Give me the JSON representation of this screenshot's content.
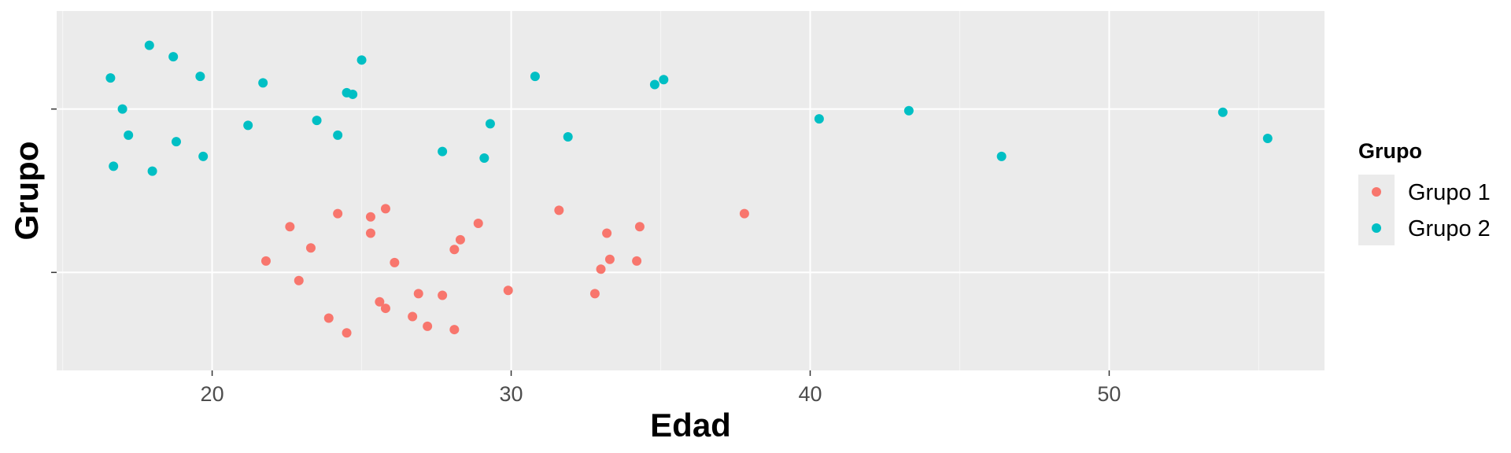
{
  "chart_data": {
    "type": "scatter",
    "title": "",
    "xlabel": "Edad",
    "ylabel": "Grupo",
    "xlim": [
      14.8,
      57.2
    ],
    "x_ticks": [
      20,
      30,
      40,
      50
    ],
    "x_tick_labels": [
      "20",
      "30",
      "40",
      "50"
    ],
    "y_categories": [
      "Grupo 1",
      "Grupo 2"
    ],
    "grid": true,
    "legend": {
      "title": "Grupo",
      "placement": "right"
    },
    "series": [
      {
        "name": "Grupo 1",
        "color": "#F8766D",
        "points": [
          {
            "x": 21.8,
            "y": "Grupo 1",
            "jitter": 0.07
          },
          {
            "x": 22.6,
            "y": "Grupo 1",
            "jitter": 0.28
          },
          {
            "x": 22.9,
            "y": "Grupo 1",
            "jitter": -0.05
          },
          {
            "x": 23.3,
            "y": "Grupo 1",
            "jitter": 0.15
          },
          {
            "x": 23.9,
            "y": "Grupo 1",
            "jitter": -0.28
          },
          {
            "x": 24.2,
            "y": "Grupo 1",
            "jitter": 0.36
          },
          {
            "x": 24.5,
            "y": "Grupo 1",
            "jitter": -0.37
          },
          {
            "x": 25.3,
            "y": "Grupo 1",
            "jitter": 0.34
          },
          {
            "x": 25.3,
            "y": "Grupo 1",
            "jitter": 0.24
          },
          {
            "x": 25.6,
            "y": "Grupo 1",
            "jitter": -0.18
          },
          {
            "x": 25.8,
            "y": "Grupo 1",
            "jitter": 0.39
          },
          {
            "x": 25.8,
            "y": "Grupo 1",
            "jitter": -0.22
          },
          {
            "x": 26.1,
            "y": "Grupo 1",
            "jitter": 0.06
          },
          {
            "x": 26.7,
            "y": "Grupo 1",
            "jitter": -0.27
          },
          {
            "x": 26.9,
            "y": "Grupo 1",
            "jitter": -0.13
          },
          {
            "x": 27.2,
            "y": "Grupo 1",
            "jitter": -0.33
          },
          {
            "x": 27.7,
            "y": "Grupo 1",
            "jitter": -0.14
          },
          {
            "x": 28.1,
            "y": "Grupo 1",
            "jitter": 0.14
          },
          {
            "x": 28.1,
            "y": "Grupo 1",
            "jitter": -0.35
          },
          {
            "x": 28.3,
            "y": "Grupo 1",
            "jitter": 0.2
          },
          {
            "x": 28.9,
            "y": "Grupo 1",
            "jitter": 0.3
          },
          {
            "x": 29.9,
            "y": "Grupo 1",
            "jitter": -0.11
          },
          {
            "x": 31.6,
            "y": "Grupo 1",
            "jitter": 0.38
          },
          {
            "x": 32.8,
            "y": "Grupo 1",
            "jitter": -0.13
          },
          {
            "x": 33.0,
            "y": "Grupo 1",
            "jitter": 0.02
          },
          {
            "x": 33.2,
            "y": "Grupo 1",
            "jitter": 0.24
          },
          {
            "x": 33.3,
            "y": "Grupo 1",
            "jitter": 0.08
          },
          {
            "x": 34.2,
            "y": "Grupo 1",
            "jitter": 0.07
          },
          {
            "x": 34.3,
            "y": "Grupo 1",
            "jitter": 0.28
          },
          {
            "x": 37.8,
            "y": "Grupo 1",
            "jitter": 0.36
          }
        ]
      },
      {
        "name": "Grupo 2",
        "color": "#00BFC4",
        "points": [
          {
            "x": 16.6,
            "y": "Grupo 2",
            "jitter": 0.19
          },
          {
            "x": 16.7,
            "y": "Grupo 2",
            "jitter": -0.35
          },
          {
            "x": 17.0,
            "y": "Grupo 2",
            "jitter": 0.0
          },
          {
            "x": 17.2,
            "y": "Grupo 2",
            "jitter": -0.16
          },
          {
            "x": 17.9,
            "y": "Grupo 2",
            "jitter": 0.39
          },
          {
            "x": 18.0,
            "y": "Grupo 2",
            "jitter": -0.38
          },
          {
            "x": 18.7,
            "y": "Grupo 2",
            "jitter": 0.32
          },
          {
            "x": 18.8,
            "y": "Grupo 2",
            "jitter": -0.2
          },
          {
            "x": 19.6,
            "y": "Grupo 2",
            "jitter": 0.2
          },
          {
            "x": 19.7,
            "y": "Grupo 2",
            "jitter": -0.29
          },
          {
            "x": 21.2,
            "y": "Grupo 2",
            "jitter": -0.1
          },
          {
            "x": 21.7,
            "y": "Grupo 2",
            "jitter": 0.16
          },
          {
            "x": 23.5,
            "y": "Grupo 2",
            "jitter": -0.07
          },
          {
            "x": 24.2,
            "y": "Grupo 2",
            "jitter": -0.16
          },
          {
            "x": 24.5,
            "y": "Grupo 2",
            "jitter": 0.1
          },
          {
            "x": 24.7,
            "y": "Grupo 2",
            "jitter": 0.09
          },
          {
            "x": 25.0,
            "y": "Grupo 2",
            "jitter": 0.3
          },
          {
            "x": 27.7,
            "y": "Grupo 2",
            "jitter": -0.26
          },
          {
            "x": 29.1,
            "y": "Grupo 2",
            "jitter": -0.3
          },
          {
            "x": 29.3,
            "y": "Grupo 2",
            "jitter": -0.09
          },
          {
            "x": 30.8,
            "y": "Grupo 2",
            "jitter": 0.2
          },
          {
            "x": 31.9,
            "y": "Grupo 2",
            "jitter": -0.17
          },
          {
            "x": 34.8,
            "y": "Grupo 2",
            "jitter": 0.15
          },
          {
            "x": 35.1,
            "y": "Grupo 2",
            "jitter": 0.18
          },
          {
            "x": 40.3,
            "y": "Grupo 2",
            "jitter": -0.06
          },
          {
            "x": 43.3,
            "y": "Grupo 2",
            "jitter": -0.01
          },
          {
            "x": 46.4,
            "y": "Grupo 2",
            "jitter": -0.29
          },
          {
            "x": 53.8,
            "y": "Grupo 2",
            "jitter": -0.02
          },
          {
            "x": 55.3,
            "y": "Grupo 2",
            "jitter": -0.18
          }
        ]
      }
    ]
  },
  "colors": {
    "panel_background": "#EBEBEB",
    "grid_major": "#FFFFFF",
    "grid_minor": "#F5F5F5",
    "tick_label": "#4D4D4D"
  }
}
